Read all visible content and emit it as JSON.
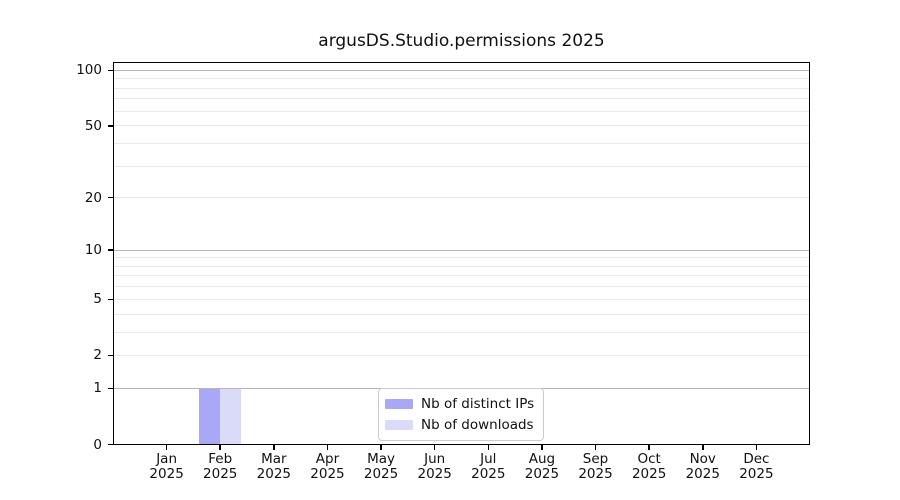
{
  "chart_data": {
    "type": "bar",
    "title": "argusDS.Studio.permissions 2025",
    "x_categories": [
      {
        "month": "Jan",
        "year": "2025"
      },
      {
        "month": "Feb",
        "year": "2025"
      },
      {
        "month": "Mar",
        "year": "2025"
      },
      {
        "month": "Apr",
        "year": "2025"
      },
      {
        "month": "May",
        "year": "2025"
      },
      {
        "month": "Jun",
        "year": "2025"
      },
      {
        "month": "Jul",
        "year": "2025"
      },
      {
        "month": "Aug",
        "year": "2025"
      },
      {
        "month": "Sep",
        "year": "2025"
      },
      {
        "month": "Oct",
        "year": "2025"
      },
      {
        "month": "Nov",
        "year": "2025"
      },
      {
        "month": "Dec",
        "year": "2025"
      }
    ],
    "series": [
      {
        "name": "Nb of distinct IPs",
        "color": "#a8a8f4",
        "values": [
          0,
          1,
          0,
          0,
          0,
          0,
          0,
          0,
          0,
          0,
          0,
          0
        ]
      },
      {
        "name": "Nb of downloads",
        "color": "#d9dbf8",
        "values": [
          0,
          1,
          0,
          0,
          0,
          0,
          0,
          0,
          0,
          0,
          0,
          0
        ]
      }
    ],
    "y_axis": {
      "scale": "log1p",
      "ticks": [
        0,
        1,
        2,
        5,
        10,
        20,
        50,
        100
      ],
      "major_gridlines": [
        1,
        10,
        100
      ],
      "minor_gridlines": [
        2,
        3,
        4,
        5,
        6,
        7,
        8,
        9,
        20,
        30,
        40,
        50,
        60,
        70,
        80,
        90
      ],
      "ylim": [
        0,
        111
      ]
    },
    "legend": {
      "position": "lower center"
    },
    "colors": {
      "major_grid": "#b6b6b6",
      "minor_grid": "#e9e9e9",
      "spine": "#000000",
      "legend_border": "#cccccc",
      "text": "#111111"
    }
  }
}
